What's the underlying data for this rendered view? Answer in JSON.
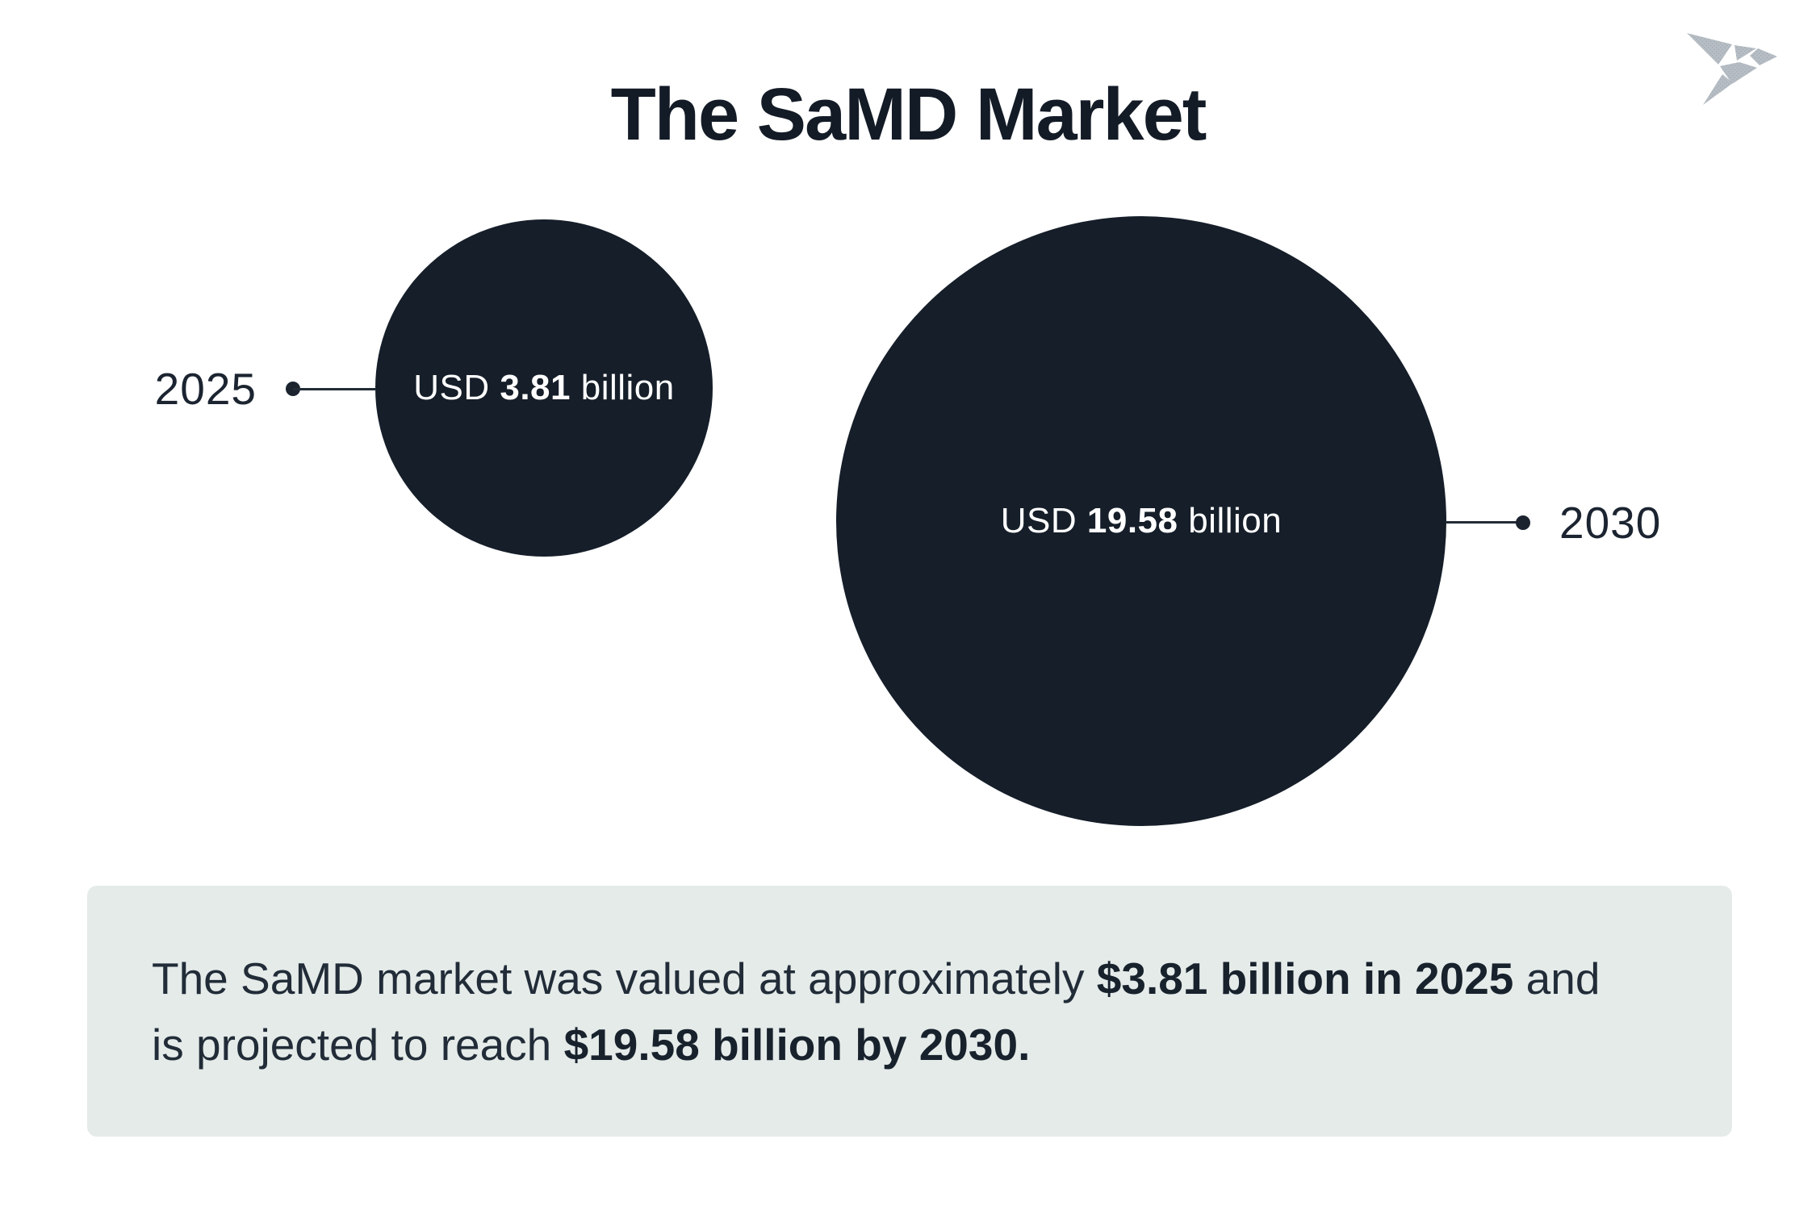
{
  "page": {
    "background": "#ffffff"
  },
  "header": {
    "title": "The SaMD Market",
    "title_color": "#131b26"
  },
  "logo": {
    "name": "origami-bird",
    "base_color": "#b6bdc4",
    "dot_color": "#9aa3ab"
  },
  "chart_data": {
    "type": "bubble",
    "title": "The SaMD Market",
    "unit": "USD billion",
    "points": [
      {
        "category": "2025",
        "value": 3.81,
        "display_label": "USD 3.81 billion"
      },
      {
        "category": "2030",
        "value": 19.58,
        "display_label": "USD 19.58 billion"
      }
    ],
    "bubble_color": "#151e29",
    "bubble_text_color": "#ffffff",
    "callout_line_color": "#222c37",
    "layout": "two bubbles sized by value; year callouts with dot-and-line leaders on outer sides"
  },
  "bubbles": {
    "small": {
      "year": "2025",
      "segments": [
        {
          "text": "USD ",
          "bold": false
        },
        {
          "text": "3.81",
          "bold": true
        },
        {
          "text": " billion",
          "bold": false
        }
      ]
    },
    "large": {
      "year": "2030",
      "segments": [
        {
          "text": "USD ",
          "bold": false
        },
        {
          "text": "19.58",
          "bold": true
        },
        {
          "text": " billion",
          "bold": false
        }
      ]
    }
  },
  "footer": {
    "background": "#e5ebe9",
    "lines": {
      "line1": [
        {
          "text": "The SaMD market was valued at approximately ",
          "bold": false
        },
        {
          "text": "$3.81 billion in 2025",
          "bold": true
        },
        {
          "text": " and",
          "bold": false
        }
      ],
      "line2": [
        {
          "text": "is projected to reach ",
          "bold": false
        },
        {
          "text": "$19.58 billion by 2030.",
          "bold": true
        }
      ]
    }
  }
}
